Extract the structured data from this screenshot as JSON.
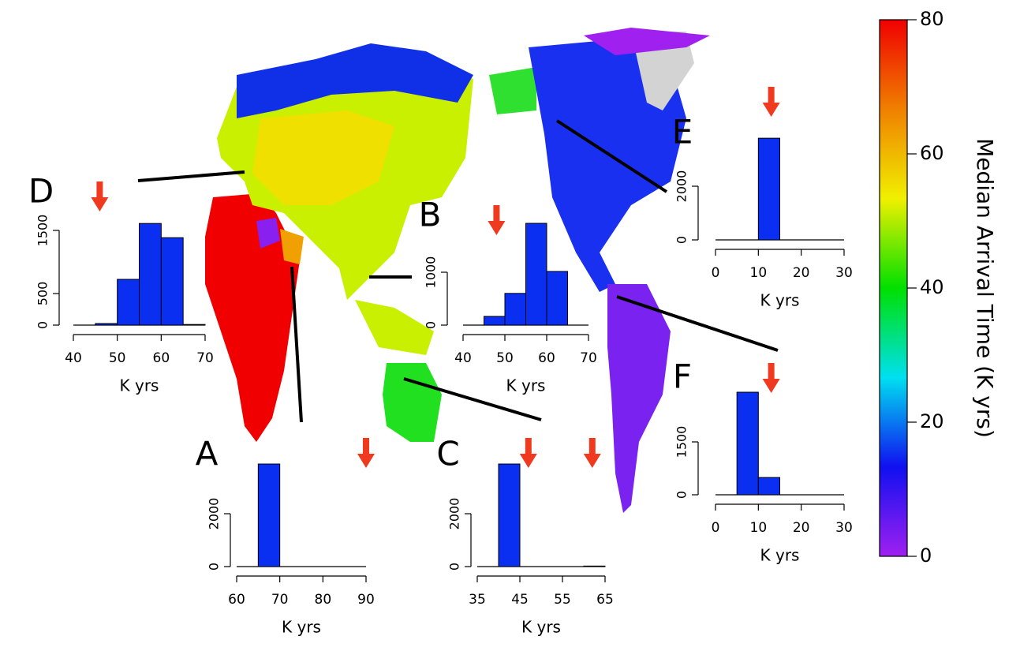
{
  "chart_data": [
    {
      "type": "histogram",
      "title": "D",
      "xlabel": "K yrs",
      "bins": [
        45,
        50,
        55,
        60,
        65,
        70
      ],
      "counts": [
        25,
        725,
        1610,
        1385,
        10
      ],
      "xlim": [
        40,
        70
      ],
      "xticks": [
        40,
        50,
        60,
        70
      ],
      "ylim": [
        0,
        1650
      ],
      "yticks": [
        0,
        500,
        1500
      ],
      "color": "#0a2ff0",
      "arrows": [
        46
      ]
    },
    {
      "type": "histogram",
      "title": "B",
      "xlabel": "K yrs",
      "bins": [
        45,
        50,
        55,
        60,
        65
      ],
      "counts": [
        165,
        600,
        1925,
        1015
      ],
      "xlim": [
        40,
        70
      ],
      "xticks": [
        40,
        50,
        60,
        70
      ],
      "ylim": [
        0,
        2000
      ],
      "yticks": [
        0,
        1000
      ],
      "color": "#0a2ff0",
      "arrows": [
        48
      ]
    },
    {
      "type": "histogram",
      "title": "E",
      "xlabel": "K yrs",
      "bins": [
        10,
        15
      ],
      "counts": [
        3790
      ],
      "xlim": [
        0,
        30
      ],
      "xticks": [
        0,
        10,
        20,
        30
      ],
      "ylim": [
        0,
        4000
      ],
      "yticks": [
        0,
        2000
      ],
      "color": "#0a2ff0",
      "arrows": [
        13
      ]
    },
    {
      "type": "histogram",
      "title": "F",
      "xlabel": "K yrs",
      "bins": [
        5,
        10,
        15
      ],
      "counts": [
        2910,
        490
      ],
      "xlim": [
        0,
        30
      ],
      "xticks": [
        0,
        10,
        20,
        30
      ],
      "ylim": [
        0,
        3000
      ],
      "yticks": [
        0,
        1500
      ],
      "color": "#0a2ff0",
      "arrows": [
        13
      ]
    },
    {
      "type": "histogram",
      "title": "A",
      "xlabel": "K yrs",
      "bins": [
        65,
        70
      ],
      "counts": [
        3880
      ],
      "xlim": [
        60,
        90
      ],
      "xticks": [
        60,
        70,
        80,
        90
      ],
      "ylim": [
        0,
        4000
      ],
      "yticks": [
        0,
        2000
      ],
      "color": "#0a2ff0",
      "arrows": [
        90
      ]
    },
    {
      "type": "histogram",
      "title": "C",
      "xlabel": "K yrs",
      "bins": [
        40,
        45,
        50,
        55,
        60,
        65
      ],
      "counts": [
        3880,
        0,
        0,
        0,
        20
      ],
      "xlim": [
        35,
        65
      ],
      "xticks": [
        35,
        45,
        55,
        65
      ],
      "ylim": [
        0,
        4000
      ],
      "yticks": [
        0,
        2000
      ],
      "color": "#0a2ff0",
      "arrows": [
        47,
        62
      ]
    },
    {
      "type": "colorbar",
      "ylabel": "Median Arrival Time (K yrs)",
      "ylim": [
        0,
        80
      ],
      "yticks": [
        0,
        20,
        40,
        60,
        80
      ],
      "colors": [
        "#a020f0",
        "#1010f0",
        "#00e0f0",
        "#00e000",
        "#f0f000",
        "#f08000",
        "#f00000"
      ]
    }
  ]
}
